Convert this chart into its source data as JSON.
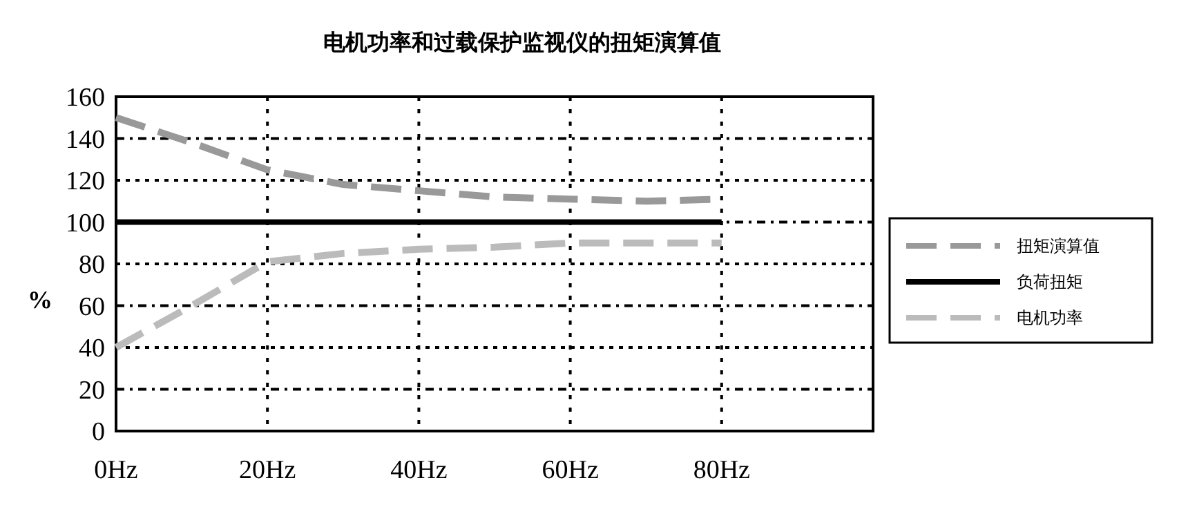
{
  "chart_data": {
    "type": "line",
    "title": "电机功率和过载保护监视仪的扭矩演算值",
    "ylabel": "%",
    "x": [
      0,
      10,
      20,
      30,
      40,
      50,
      60,
      70,
      80
    ],
    "xlim": [
      0,
      100
    ],
    "xticks": [
      {
        "value": 0,
        "label": "0Hz"
      },
      {
        "value": 20,
        "label": "20Hz"
      },
      {
        "value": 40,
        "label": "40Hz"
      },
      {
        "value": 60,
        "label": "60Hz"
      },
      {
        "value": 80,
        "label": "80Hz"
      },
      {
        "value": 100,
        "label": null
      }
    ],
    "ylim": [
      0,
      160
    ],
    "yticks": [
      0,
      20,
      40,
      60,
      80,
      100,
      120,
      140,
      160
    ],
    "grid": true,
    "legend": "right",
    "marker": "none",
    "series": [
      {
        "name": "扭矩演算值",
        "color": "#999999",
        "line_style": "dashed",
        "values": [
          150,
          138,
          125,
          118,
          115,
          112,
          111,
          110,
          111
        ]
      },
      {
        "name": "负荷扭矩",
        "color": "#000000",
        "line_style": "solid",
        "values": [
          100,
          100,
          100,
          100,
          100,
          100,
          100,
          100,
          100
        ]
      },
      {
        "name": "电机功率",
        "color": "#bbbbbb",
        "line_style": "dashed",
        "values": [
          40,
          60,
          81,
          85,
          87,
          88,
          90,
          90,
          90
        ]
      }
    ]
  }
}
